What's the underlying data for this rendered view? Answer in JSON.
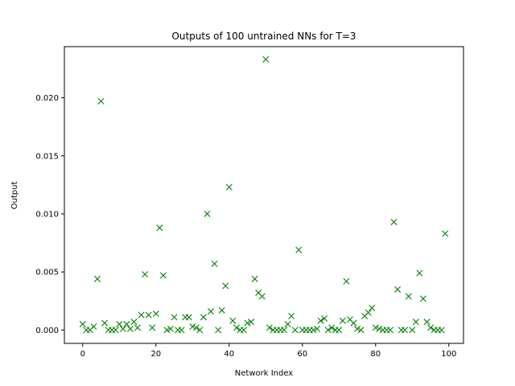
{
  "chart_data": {
    "type": "scatter",
    "title": "Outputs of 100 untrained NNs for T=3",
    "xlabel": "Network Index",
    "ylabel": "Output",
    "xlim": [
      -5,
      104
    ],
    "ylim": [
      -0.00115,
      0.0244
    ],
    "xticks": [
      0,
      20,
      40,
      60,
      80,
      100
    ],
    "yticks": [
      0.0,
      0.005,
      0.01,
      0.015,
      0.02
    ],
    "ytick_labels": [
      "0.000",
      "0.005",
      "0.010",
      "0.015",
      "0.020"
    ],
    "grid": false,
    "legend": "none",
    "marker": "x",
    "color": "#008000",
    "series": [
      {
        "x": [
          0,
          1,
          2,
          3,
          4,
          5,
          6,
          7,
          8,
          9,
          10,
          11,
          12,
          13,
          14,
          15,
          16,
          17,
          18,
          19,
          20,
          21,
          22,
          23,
          24,
          25,
          26,
          27,
          28,
          29,
          30,
          31,
          32,
          33,
          34,
          35,
          36,
          37,
          38,
          39,
          40,
          41,
          42,
          43,
          44,
          45,
          46,
          47,
          48,
          49,
          50,
          51,
          52,
          53,
          54,
          55,
          56,
          57,
          58,
          59,
          60,
          61,
          62,
          63,
          64,
          65,
          66,
          67,
          68,
          69,
          70,
          71,
          72,
          73,
          74,
          75,
          76,
          77,
          78,
          79,
          80,
          81,
          82,
          83,
          84,
          85,
          86,
          87,
          88,
          89,
          90,
          91,
          92,
          93,
          94,
          95,
          96,
          97,
          98,
          99
        ],
        "y": [
          0.0005,
          0.0,
          0.0,
          0.0003,
          0.0044,
          0.0197,
          0.0006,
          0.0,
          0.0,
          0.0,
          0.0005,
          0.0001,
          0.0005,
          0.0001,
          0.0007,
          0.0002,
          0.0013,
          0.0048,
          0.0013,
          0.0002,
          0.0014,
          0.0088,
          0.0047,
          0.0,
          0.0001,
          0.0011,
          0.0,
          0.0,
          0.0011,
          0.0011,
          0.0003,
          0.0002,
          0.0,
          0.0011,
          0.01,
          0.0016,
          0.0057,
          0.0,
          0.0017,
          0.0038,
          0.0123,
          0.0008,
          0.0002,
          0.0,
          0.0,
          0.0006,
          0.0007,
          0.0044,
          0.0032,
          0.0029,
          0.0233,
          0.0002,
          0.0,
          0.0,
          0.0,
          0.0,
          0.0005,
          0.0012,
          0.0,
          0.0069,
          0.0,
          0.0,
          0.0,
          0.0,
          0.0001,
          0.0008,
          0.001,
          0.0,
          0.0002,
          0.0,
          0.0,
          0.0008,
          0.0042,
          0.0009,
          0.0006,
          0.0001,
          0.0,
          0.0012,
          0.0015,
          0.0019,
          0.0002,
          0.0001,
          0.0,
          0.0,
          0.0,
          0.0093,
          0.0035,
          0.0,
          0.0,
          0.0029,
          0.0,
          0.0007,
          0.0049,
          0.0027,
          0.0007,
          0.0002,
          0.0,
          0.0,
          0.0,
          0.0083
        ]
      }
    ]
  }
}
